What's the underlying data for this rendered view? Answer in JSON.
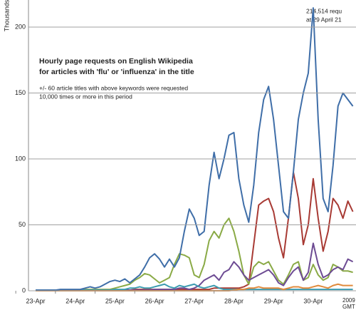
{
  "chart_data": {
    "type": "line",
    "title": [
      "Hourly page requests on English Wikipedia",
      "for articles with 'flu' or 'influenza' in the title"
    ],
    "subtitle": [
      "+/- 60 article titles with above keywords  were requested",
      "10,000 times or more in this period"
    ],
    "annotation": [
      "214,514 requ",
      "at 29 April 21"
    ],
    "ylabel": "Thousands",
    "x_annotation": [
      "2009",
      "GMT"
    ],
    "categories": [
      "23-Apr",
      null,
      null,
      null,
      null,
      null,
      null,
      null,
      "24-Apr",
      null,
      null,
      null,
      null,
      null,
      null,
      null,
      "25-Apr",
      null,
      null,
      null,
      null,
      null,
      null,
      null,
      "26-Apr",
      null,
      null,
      null,
      null,
      null,
      null,
      null,
      "27-Apr",
      null,
      null,
      null,
      null,
      null,
      null,
      null,
      "28-Apr",
      null,
      null,
      null,
      null,
      null,
      null,
      null,
      "29-Apr",
      null,
      null,
      null,
      null,
      null,
      null,
      null,
      "30-Apr",
      null,
      null,
      null,
      null,
      null,
      null,
      null,
      null
    ],
    "ylim": [
      0,
      220
    ],
    "yticks": [
      0,
      50,
      100,
      150,
      200
    ],
    "grid": true,
    "series": [
      {
        "color": "#a83a34",
        "values": [
          0,
          0,
          0,
          0,
          0,
          0,
          0,
          0,
          0,
          0,
          0,
          0,
          0,
          0.5,
          0.5,
          0.5,
          0.5,
          0.5,
          0.5,
          0.5,
          1,
          1,
          1,
          1,
          1,
          1,
          1,
          1,
          1,
          1,
          1,
          1,
          1,
          1,
          1,
          1,
          2,
          2,
          2,
          2,
          2,
          2,
          3,
          5,
          35,
          65,
          68,
          70,
          60,
          40,
          25,
          55,
          90,
          70,
          35,
          50,
          85,
          55,
          30,
          45,
          70,
          65,
          55,
          68,
          60
        ]
      },
      {
        "color": "#8aaa46",
        "values": [
          0.5,
          0.5,
          0.5,
          0.5,
          0.5,
          0.5,
          0.5,
          0.5,
          0.5,
          0.5,
          1,
          1,
          1,
          1,
          1,
          1,
          2,
          3,
          4,
          5,
          8,
          10,
          13,
          12,
          9,
          6,
          8,
          10,
          20,
          28,
          27,
          25,
          12,
          10,
          20,
          38,
          45,
          40,
          50,
          55,
          45,
          30,
          12,
          5,
          18,
          22,
          20,
          22,
          15,
          8,
          5,
          12,
          20,
          22,
          8,
          10,
          20,
          12,
          8,
          10,
          20,
          18,
          15,
          15,
          14
        ]
      },
      {
        "color": "#6d4b93",
        "values": [
          0.5,
          0.5,
          0.5,
          0.5,
          0.5,
          0.5,
          0.5,
          0.5,
          0.5,
          0.5,
          0.5,
          0.5,
          0.5,
          0.5,
          0.5,
          0.5,
          0.5,
          0.5,
          0.5,
          0.5,
          0.5,
          0.5,
          0.5,
          0.5,
          1,
          1,
          1,
          1,
          1,
          2,
          2,
          1,
          2,
          4,
          8,
          10,
          12,
          8,
          14,
          16,
          22,
          18,
          12,
          8,
          10,
          12,
          14,
          16,
          12,
          6,
          4,
          10,
          15,
          18,
          8,
          14,
          36,
          20,
          10,
          12,
          16,
          18,
          16,
          24,
          22
        ]
      },
      {
        "color": "#3b9bb0",
        "values": [
          0.5,
          0.5,
          0.5,
          0.5,
          0.5,
          0.5,
          0.5,
          0.5,
          0.5,
          0.5,
          0.5,
          0.5,
          0.5,
          0.5,
          0.5,
          0.5,
          1,
          1,
          1,
          2,
          2,
          3,
          2,
          2,
          3,
          4,
          5,
          3,
          2,
          4,
          3,
          4,
          5,
          3,
          2,
          3,
          4,
          2,
          1,
          1,
          1,
          1,
          1,
          1,
          1,
          1,
          1,
          1,
          1,
          1,
          1,
          1,
          1,
          1,
          1,
          1,
          1,
          1,
          1,
          1,
          1,
          1,
          1,
          1,
          1
        ]
      },
      {
        "color": "#e08a3c",
        "values": [
          0,
          0,
          0,
          0,
          0,
          0,
          0,
          0,
          0,
          0,
          0,
          0,
          0,
          0,
          0,
          0,
          0,
          0,
          0,
          0,
          0,
          0,
          0,
          0,
          0,
          0,
          0,
          0,
          0,
          0,
          0,
          0,
          0,
          0,
          0,
          0,
          0,
          0,
          0,
          0,
          0.5,
          1,
          1,
          2,
          2,
          3,
          2,
          2,
          2,
          2,
          1,
          2,
          3,
          3,
          2,
          2,
          3,
          4,
          3,
          2,
          4,
          5,
          4,
          4,
          4
        ]
      },
      {
        "color": "#3f6ea8",
        "values": [
          0.5,
          0.5,
          0.5,
          0.5,
          0.5,
          1,
          1,
          1,
          1,
          1,
          2,
          3,
          2,
          3,
          5,
          7,
          8,
          7,
          9,
          6,
          9,
          12,
          18,
          25,
          28,
          24,
          18,
          24,
          18,
          25,
          45,
          62,
          55,
          42,
          45,
          80,
          105,
          85,
          100,
          118,
          120,
          85,
          65,
          52,
          80,
          120,
          145,
          155,
          130,
          95,
          60,
          55,
          90,
          130,
          150,
          165,
          214.5,
          130,
          70,
          60,
          95,
          140,
          150,
          145,
          140
        ]
      }
    ]
  }
}
